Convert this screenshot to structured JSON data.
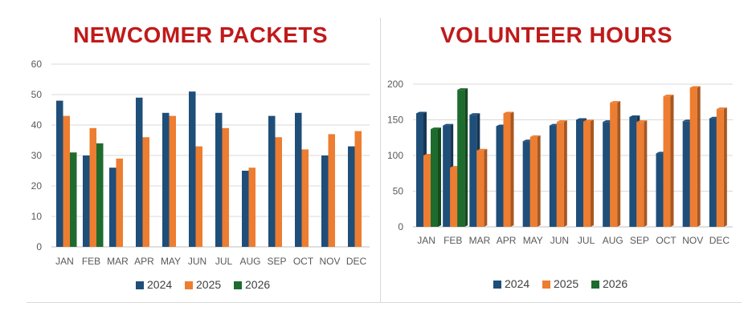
{
  "colors": {
    "2024": "#1f4e79",
    "2025": "#ed7d31",
    "2026": "#1e6b2e",
    "title": "#c01a1a"
  },
  "chart_data": [
    {
      "type": "bar",
      "title": "NEWCOMER PACKETS",
      "categories": [
        "JAN",
        "FEB",
        "MAR",
        "APR",
        "MAY",
        "JUN",
        "JUL",
        "AUG",
        "SEP",
        "OCT",
        "NOV",
        "DEC"
      ],
      "ylim": [
        0,
        60
      ],
      "yticks": [
        "0",
        "10",
        "20",
        "30",
        "40",
        "50",
        "60"
      ],
      "grid": true,
      "legend": "bottom",
      "series": [
        {
          "name": "2024",
          "values": [
            48,
            30,
            26,
            49,
            44,
            51,
            44,
            25,
            43,
            44,
            30,
            33
          ]
        },
        {
          "name": "2025",
          "values": [
            43,
            39,
            29,
            36,
            43,
            33,
            39,
            26,
            36,
            32,
            37,
            38
          ]
        },
        {
          "name": "2026",
          "values": [
            31,
            34,
            null,
            null,
            null,
            null,
            null,
            null,
            null,
            null,
            null,
            null
          ]
        }
      ]
    },
    {
      "type": "bar",
      "title": "VOLUNTEER HOURS",
      "categories": [
        "JAN",
        "FEB",
        "MAR",
        "APR",
        "MAY",
        "JUN",
        "JUL",
        "AUG",
        "SEP",
        "OCT",
        "NOV",
        "DEC"
      ],
      "ylim": [
        0,
        200
      ],
      "yticks": [
        "0",
        "50",
        "100",
        "150",
        "200"
      ],
      "grid": true,
      "legend": "bottom",
      "style": "3d",
      "series": [
        {
          "name": "2024",
          "values": [
            159,
            142,
            157,
            141,
            120,
            142,
            150,
            147,
            154,
            103,
            148,
            152
          ]
        },
        {
          "name": "2025",
          "values": [
            100,
            83,
            107,
            159,
            126,
            147,
            148,
            174,
            147,
            183,
            195,
            165
          ]
        },
        {
          "name": "2026",
          "values": [
            137,
            192,
            null,
            null,
            null,
            null,
            null,
            null,
            null,
            null,
            null,
            null
          ]
        }
      ]
    }
  ]
}
